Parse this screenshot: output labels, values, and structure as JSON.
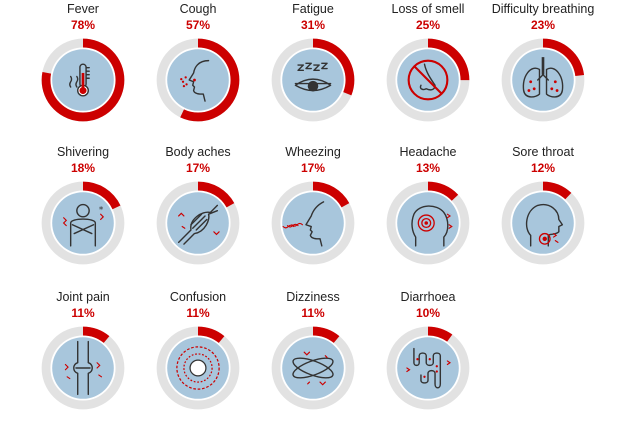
{
  "chart_data": {
    "type": "donut-grid",
    "title": "",
    "colors": {
      "track": "#e2e2e2",
      "fill": "#cc0000",
      "inner": "#a8c6dc",
      "line": "#333333",
      "accent": "#cc0000"
    },
    "items": [
      {
        "label": "Fever",
        "value": 78,
        "display": "78%",
        "icon": "thermometer-icon"
      },
      {
        "label": "Cough",
        "value": 57,
        "display": "57%",
        "icon": "cough-face-icon"
      },
      {
        "label": "Fatigue",
        "value": 31,
        "display": "31%",
        "icon": "sleepy-eye-icon"
      },
      {
        "label": "Loss of smell",
        "value": 25,
        "display": "25%",
        "icon": "no-nose-icon"
      },
      {
        "label": "Difficulty breathing",
        "value": 23,
        "display": "23%",
        "icon": "lungs-icon"
      },
      {
        "label": "Shivering",
        "value": 18,
        "display": "18%",
        "icon": "shivering-person-icon"
      },
      {
        "label": "Body aches",
        "value": 17,
        "display": "17%",
        "icon": "muscle-icon"
      },
      {
        "label": "Wheezing",
        "value": 17,
        "display": "17%",
        "icon": "wheezing-face-icon"
      },
      {
        "label": "Headache",
        "value": 13,
        "display": "13%",
        "icon": "headache-icon"
      },
      {
        "label": "Sore throat",
        "value": 12,
        "display": "12%",
        "icon": "sore-throat-icon"
      },
      {
        "label": "Joint pain",
        "value": 11,
        "display": "11%",
        "icon": "knee-joint-icon"
      },
      {
        "label": "Confusion",
        "value": 11,
        "display": "11%",
        "icon": "confusion-icon"
      },
      {
        "label": "Dizziness",
        "value": 11,
        "display": "11%",
        "icon": "dizziness-icon"
      },
      {
        "label": "Diarrhoea",
        "value": 10,
        "display": "10%",
        "icon": "intestine-icon"
      }
    ]
  }
}
